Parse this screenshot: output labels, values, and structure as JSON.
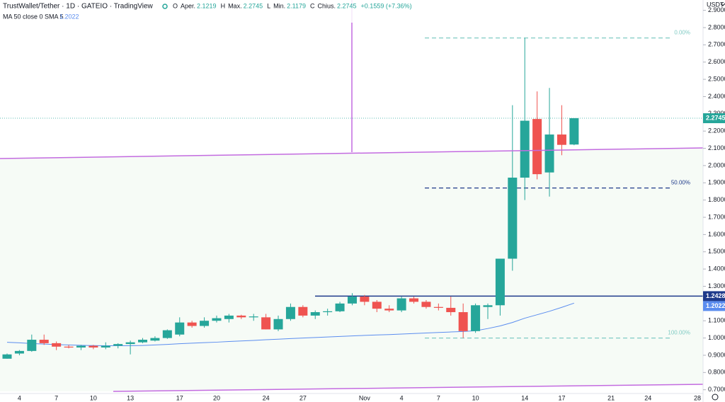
{
  "header": {
    "symbol": "TrustWallet/Tether · 1D · GATEIO · TradingView",
    "ohlc": [
      {
        "key": "O",
        "name": "Aper.",
        "value": "2.1219"
      },
      {
        "key": "H",
        "name": "Max.",
        "value": "2.2745"
      },
      {
        "key": "L",
        "name": "Min.",
        "value": "2.1179"
      },
      {
        "key": "C",
        "name": "Chius.",
        "value": "2.2745"
      }
    ],
    "change": "+0.1559 (+7.36%)",
    "currency": "USDT"
  },
  "chart_data": {
    "type": "candlestick",
    "categories": [
      null,
      "4",
      null,
      null,
      "7",
      null,
      null,
      "10",
      null,
      null,
      "13",
      null,
      null,
      null,
      "17",
      null,
      null,
      "20",
      null,
      null,
      null,
      "24",
      null,
      null,
      "27",
      null,
      null,
      null,
      null,
      "Nov",
      null,
      null,
      "4",
      null,
      null,
      "7",
      null,
      null,
      "10",
      null,
      null,
      null,
      "14",
      null,
      null,
      "17",
      null,
      null,
      null,
      "21",
      null,
      null,
      "24",
      null,
      null,
      null,
      "28"
    ],
    "open": [
      0.88,
      0.91,
      0.925,
      0.99,
      0.97,
      0.95,
      0.945,
      0.955,
      0.945,
      0.955,
      0.965,
      0.975,
      0.985,
      1.0,
      1.02,
      1.09,
      1.07,
      1.1,
      1.11,
      1.13,
      1.12,
      1.12,
      1.05,
      1.11,
      1.18,
      1.13,
      1.15,
      1.155,
      1.2,
      1.24,
      1.21,
      1.17,
      1.16,
      1.23,
      1.21,
      1.18,
      1.175,
      1.15,
      1.04,
      1.18,
      1.19,
      1.46,
      1.93,
      2.27,
      1.96,
      2.18,
      2.1219,
      null,
      null,
      null,
      null,
      null,
      null,
      null,
      null,
      null,
      null
    ],
    "high": [
      0.91,
      0.93,
      1.02,
      1.02,
      0.98,
      0.96,
      0.96,
      0.96,
      0.975,
      0.97,
      0.985,
      1.0,
      1.01,
      1.05,
      1.12,
      1.1,
      1.12,
      1.13,
      1.14,
      1.135,
      1.14,
      1.14,
      1.13,
      1.2,
      1.19,
      1.16,
      1.17,
      1.21,
      1.26,
      1.25,
      1.22,
      1.19,
      1.24,
      1.24,
      1.22,
      1.2,
      1.24,
      1.2,
      1.2,
      1.2,
      1.46,
      2.35,
      2.74,
      2.43,
      2.45,
      2.35,
      2.2745,
      null,
      null,
      null,
      null,
      null,
      null,
      null,
      null,
      null,
      null
    ],
    "low": [
      0.88,
      0.9,
      0.92,
      0.96,
      0.93,
      0.94,
      0.93,
      0.935,
      0.935,
      0.94,
      0.905,
      0.97,
      0.98,
      0.995,
      1.01,
      1.06,
      1.06,
      1.09,
      1.09,
      1.11,
      1.1,
      1.05,
      1.04,
      1.1,
      1.12,
      1.11,
      1.13,
      1.15,
      1.19,
      1.19,
      1.15,
      1.15,
      1.15,
      1.2,
      1.17,
      1.16,
      1.13,
      1.0,
      1.03,
      1.11,
      1.13,
      1.39,
      1.8,
      1.92,
      1.82,
      2.06,
      2.1179,
      null,
      null,
      null,
      null,
      null,
      null,
      null,
      null,
      null,
      null
    ],
    "close": [
      0.905,
      0.925,
      0.99,
      0.97,
      0.95,
      0.945,
      0.955,
      0.945,
      0.955,
      0.965,
      0.975,
      0.99,
      1.0,
      1.045,
      1.09,
      1.07,
      1.1,
      1.115,
      1.13,
      1.12,
      1.125,
      1.05,
      1.11,
      1.18,
      1.13,
      1.15,
      1.155,
      1.2,
      1.24,
      1.21,
      1.17,
      1.16,
      1.23,
      1.21,
      1.18,
      1.175,
      1.15,
      1.04,
      1.19,
      1.19,
      1.46,
      1.93,
      2.26,
      1.95,
      2.18,
      2.12,
      2.2745,
      null,
      null,
      null,
      null,
      null,
      null,
      null,
      null,
      null,
      null
    ],
    "up_color": "#26a69a",
    "down_color": "#ef5350",
    "sma": {
      "name": "MA 50 close 0 SMA 5",
      "color": "#5b8def",
      "values": [
        0.975,
        0.972,
        0.968,
        0.965,
        0.962,
        0.96,
        0.958,
        0.956,
        0.955,
        0.955,
        0.955,
        0.957,
        0.96,
        0.963,
        0.967,
        0.97,
        0.973,
        0.976,
        0.98,
        0.983,
        0.986,
        0.99,
        0.993,
        0.997,
        1.0,
        1.003,
        1.006,
        1.009,
        1.012,
        1.015,
        1.018,
        1.02,
        1.023,
        1.026,
        1.029,
        1.032,
        1.035,
        1.038,
        1.042,
        1.055,
        1.07,
        1.09,
        1.115,
        1.135,
        1.155,
        1.178,
        1.2022,
        null,
        null,
        null,
        null,
        null,
        null,
        null,
        null,
        null,
        null
      ]
    },
    "price_line": 1.2428,
    "fib_levels": [
      {
        "label": "0.00%",
        "value": 2.74,
        "color": "#80cbc4"
      },
      {
        "label": "50.00%",
        "value": 1.87,
        "color": "#1e3a8a"
      },
      {
        "label": "100.00%",
        "value": 1.0,
        "color": "#80cbc4"
      }
    ],
    "ylim": [
      0.67,
      2.96
    ],
    "yticks": [
      {
        "value": 0.7,
        "label": "0.7000"
      },
      {
        "value": 0.8,
        "label": "0.8000"
      },
      {
        "value": 0.9,
        "label": "0.9000"
      },
      {
        "value": 1.0,
        "label": "1.0000"
      },
      {
        "value": 1.1,
        "label": "1.1000"
      },
      {
        "value": 1.2,
        "label": "1.2000"
      },
      {
        "value": 1.3,
        "label": "1.3000"
      },
      {
        "value": 1.4,
        "label": "1.4000"
      },
      {
        "value": 1.5,
        "label": "1.5000"
      },
      {
        "value": 1.6,
        "label": "1.6000"
      },
      {
        "value": 1.7,
        "label": "1.7000"
      },
      {
        "value": 1.8,
        "label": "1.8000"
      },
      {
        "value": 1.9,
        "label": "1.9000"
      },
      {
        "value": 2.0,
        "label": "2.0000"
      },
      {
        "value": 2.1,
        "label": "2.1000"
      },
      {
        "value": 2.2,
        "label": "2.2000"
      },
      {
        "value": 2.3,
        "label": "2.3000"
      },
      {
        "value": 2.4,
        "label": "2.4000"
      },
      {
        "value": 2.5,
        "label": "2.5000"
      },
      {
        "value": 2.6,
        "label": "2.6000"
      },
      {
        "value": 2.7,
        "label": "2.7000"
      },
      {
        "value": 2.8,
        "label": "2.8000"
      },
      {
        "value": 2.9,
        "label": "2.9000"
      }
    ]
  }
}
